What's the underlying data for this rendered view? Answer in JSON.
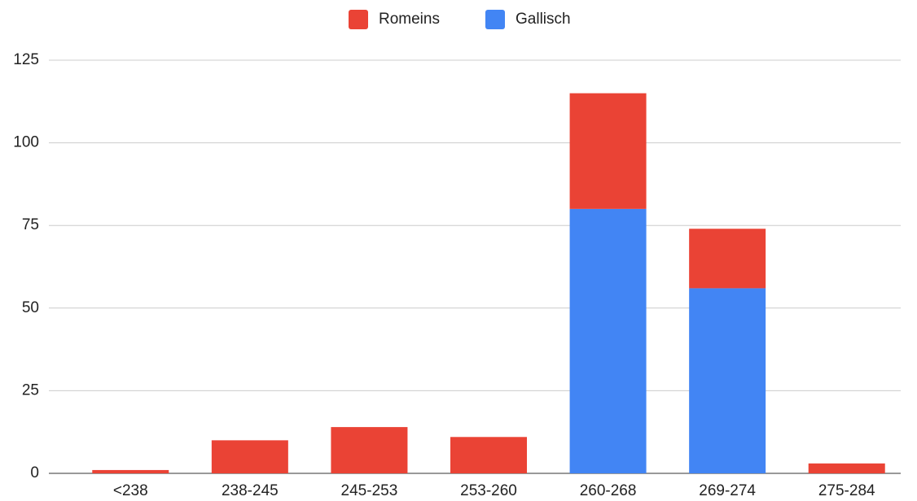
{
  "chart_data": {
    "type": "stacked_bar",
    "categories": [
      "<238",
      "238-245",
      "245-253",
      "253-260",
      "260-268",
      "269-274",
      "275-284"
    ],
    "series": [
      {
        "name": "Romeins",
        "color": "#ea4335",
        "values": [
          1,
          10,
          14,
          11,
          35,
          18,
          3
        ]
      },
      {
        "name": "Gallisch",
        "color": "#4285f4",
        "values": [
          0,
          0,
          0,
          0,
          80,
          56,
          0
        ]
      }
    ],
    "ylim": [
      0,
      125
    ],
    "yticks": [
      0,
      25,
      50,
      75,
      100,
      125
    ],
    "grid": true,
    "legend": "top"
  }
}
